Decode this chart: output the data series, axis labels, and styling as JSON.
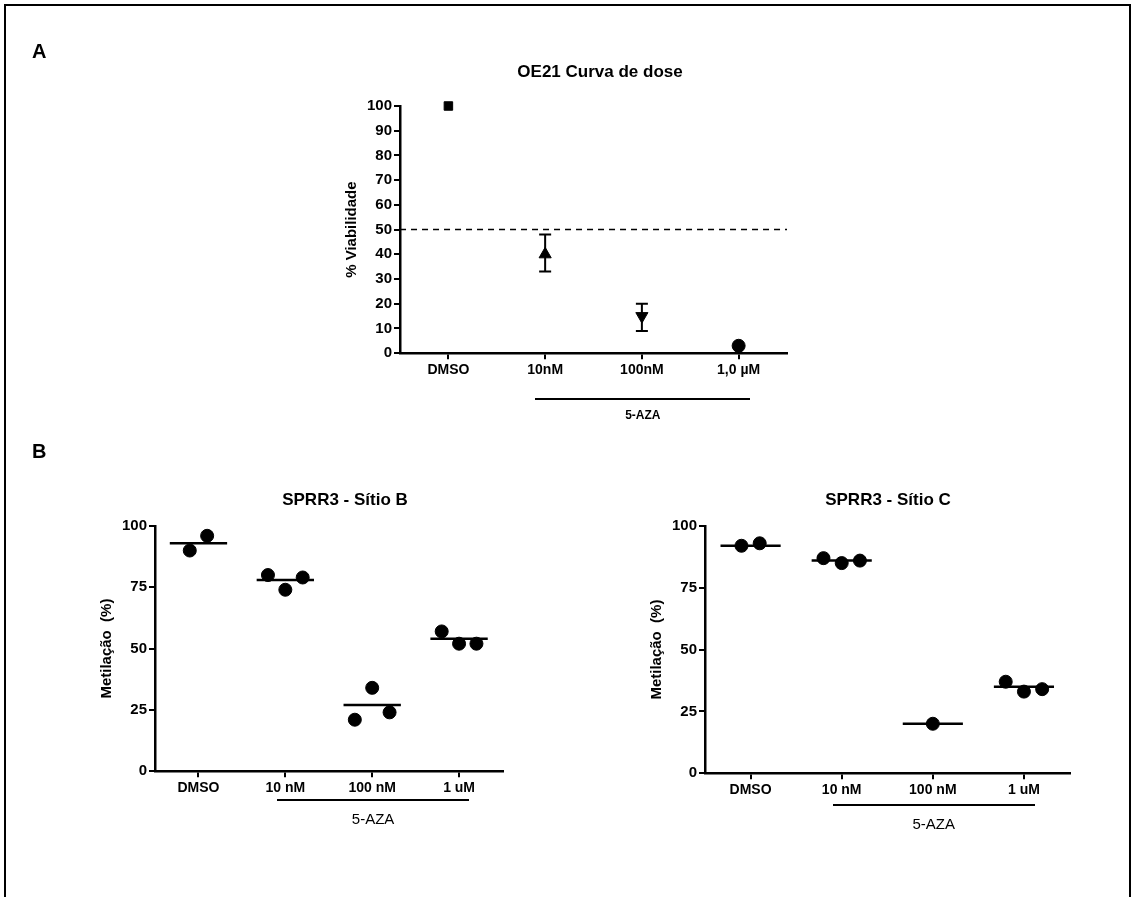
{
  "chart_data": [
    {
      "type": "scatter",
      "title": "OE21 Curva de dose",
      "ylabel": "% Viabilidade",
      "xlabel": "5-AZA",
      "annotations": [
        "A"
      ],
      "categories": [
        "DMSO",
        "10nM",
        "100nM",
        "1,0 µM"
      ],
      "ylim": [
        0,
        100
      ],
      "yticks": [
        0,
        10,
        20,
        30,
        40,
        50,
        60,
        70,
        80,
        90,
        100
      ],
      "grid": false,
      "legend": false,
      "series": [
        {
          "color": "#000000",
          "marker": "square",
          "values": [
            100,
            null,
            null,
            null
          ]
        },
        {
          "color": "#000000",
          "marker": "triangle",
          "values": [
            null,
            40,
            null,
            null
          ],
          "errors": [
            null,
            [
              33,
              48
            ],
            null,
            null
          ]
        },
        {
          "color": "#000000",
          "marker": "triangle-down",
          "values": [
            null,
            null,
            15,
            null
          ],
          "errors": [
            null,
            null,
            [
              9,
              20
            ],
            null
          ]
        },
        {
          "color": "#000000",
          "marker": "circle",
          "values": [
            null,
            null,
            null,
            3
          ]
        }
      ],
      "ref_lines": [
        {
          "axis": "y",
          "value": 50,
          "line_style": "dashed",
          "color": "#000000"
        }
      ]
    },
    {
      "type": "scatter",
      "title": "SPRR3 - Sítio B",
      "ylabel": "Metilação  (%)",
      "xlabel": "5-AZA",
      "annotations": [
        "B"
      ],
      "categories": [
        "DMSO",
        "10 nM",
        "100 nM",
        "1 uM"
      ],
      "ylim": [
        0,
        100
      ],
      "yticks": [
        0,
        25,
        50,
        75,
        100
      ],
      "grid": false,
      "legend": false,
      "series": [
        {
          "color": "#000000",
          "marker": "circle",
          "values": [
            90,
            80,
            21,
            57
          ]
        },
        {
          "color": "#000000",
          "marker": "circle",
          "values": [
            null,
            74,
            34,
            52
          ]
        },
        {
          "color": "#000000",
          "marker": "circle",
          "values": [
            96,
            79,
            24,
            52
          ]
        },
        {
          "type": "box",
          "color": "#000000",
          "boxes": [
            {
              "low": 93,
              "q1": 93,
              "median": 93,
              "q3": 93,
              "high": 93
            },
            {
              "low": 78,
              "q1": 78,
              "median": 78,
              "q3": 78,
              "high": 78
            },
            {
              "low": 27,
              "q1": 27,
              "median": 27,
              "q3": 27,
              "high": 27
            },
            {
              "low": 54,
              "q1": 54,
              "median": 54,
              "q3": 54,
              "high": 54
            }
          ]
        }
      ]
    },
    {
      "type": "scatter",
      "title": "SPRR3 - Sítio C",
      "ylabel": "Metilação  (%)",
      "xlabel": "5-AZA",
      "categories": [
        "DMSO",
        "10 nM",
        "100 nM",
        "1 uM"
      ],
      "ylim": [
        0,
        100
      ],
      "yticks": [
        0,
        25,
        50,
        75,
        100
      ],
      "grid": false,
      "legend": false,
      "series": [
        {
          "color": "#000000",
          "marker": "circle",
          "values": [
            92,
            87,
            null,
            37
          ]
        },
        {
          "color": "#000000",
          "marker": "circle",
          "values": [
            null,
            85,
            20,
            33
          ]
        },
        {
          "color": "#000000",
          "marker": "circle",
          "values": [
            93,
            86,
            null,
            34
          ]
        },
        {
          "type": "box",
          "color": "#000000",
          "boxes": [
            {
              "low": 92,
              "q1": 92,
              "median": 92,
              "q3": 92,
              "high": 92
            },
            {
              "low": 86,
              "q1": 86,
              "median": 86,
              "q3": 86,
              "high": 86
            },
            {
              "low": 20,
              "q1": 20,
              "median": 20,
              "q3": 20,
              "high": 20
            },
            {
              "low": 35,
              "q1": 35,
              "median": 35,
              "q3": 35,
              "high": 35
            }
          ]
        }
      ]
    }
  ]
}
